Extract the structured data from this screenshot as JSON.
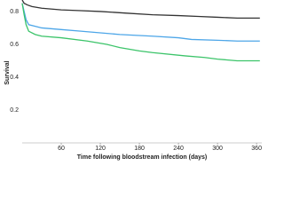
{
  "chart_data": {
    "type": "line",
    "x_label": "Time following bloodstream infection (days)",
    "y_label": "Survival",
    "xlim": [
      0,
      368
    ],
    "ylim": [
      0,
      0.87
    ],
    "xticks": [
      60,
      120,
      180,
      240,
      300,
      360
    ],
    "yticks": [
      0.2,
      0.4,
      0.6,
      0.8
    ],
    "series": [
      {
        "color": "#333333",
        "x": [
          0,
          3,
          8,
          15,
          30,
          60,
          90,
          120,
          160,
          200,
          240,
          270,
          300,
          330,
          365
        ],
        "values": [
          0.87,
          0.85,
          0.84,
          0.83,
          0.82,
          0.81,
          0.805,
          0.8,
          0.79,
          0.78,
          0.775,
          0.77,
          0.765,
          0.76,
          0.76
        ]
      },
      {
        "color": "#4da6e8",
        "x": [
          0,
          3,
          6,
          10,
          20,
          30,
          60,
          90,
          120,
          150,
          200,
          240,
          260,
          300,
          330,
          365
        ],
        "values": [
          0.85,
          0.8,
          0.75,
          0.72,
          0.71,
          0.7,
          0.69,
          0.68,
          0.67,
          0.66,
          0.65,
          0.64,
          0.63,
          0.625,
          0.62,
          0.62
        ]
      },
      {
        "color": "#3cc46a",
        "x": [
          0,
          3,
          6,
          10,
          20,
          30,
          60,
          100,
          130,
          150,
          180,
          200,
          250,
          280,
          300,
          330,
          365
        ],
        "values": [
          0.85,
          0.78,
          0.72,
          0.68,
          0.66,
          0.65,
          0.64,
          0.62,
          0.6,
          0.58,
          0.56,
          0.55,
          0.53,
          0.52,
          0.51,
          0.5,
          0.5
        ]
      }
    ]
  }
}
